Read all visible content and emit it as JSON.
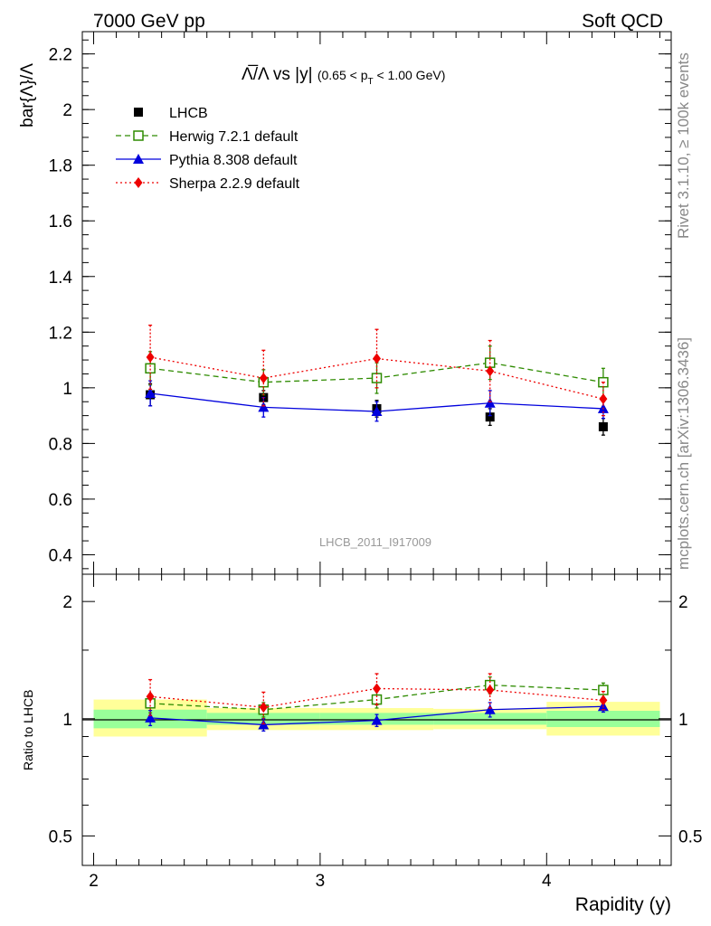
{
  "header": {
    "left": "7000 GeV pp",
    "right": "Soft QCD"
  },
  "side": {
    "rivet": "Rivet 3.1.10, ≥ 100k events",
    "mcplots": "mcplots.cern.ch [arXiv:1306.3436]"
  },
  "chart_data": [
    {
      "type": "scatter",
      "title_main": "Λ̅/Λ vs |y|",
      "title_range_pre": "(0.65 < p",
      "title_range_sub": "T",
      "title_range_post": " < 1.00 GeV)",
      "ylabel": "bar{Λ}/Λ",
      "watermark": "LHCB_2011_I917009",
      "xlim": [
        1.95,
        4.55
      ],
      "ylim": [
        0.33,
        2.28
      ],
      "x_ticks": [
        "2",
        "3",
        "4"
      ],
      "y_ticks": [
        "0.4",
        "0.6",
        "0.8",
        "1",
        "1.2",
        "1.4",
        "1.6",
        "1.8",
        "2",
        "2.2"
      ],
      "x": [
        2.25,
        2.75,
        3.25,
        3.75,
        4.25
      ],
      "series": [
        {
          "name": "LHCB",
          "color": "#000000",
          "marker": "square-filled",
          "line": "none",
          "values": [
            0.975,
            0.965,
            0.925,
            0.895,
            0.86
          ],
          "err": [
            0.04,
            0.025,
            0.03,
            0.03,
            0.03
          ]
        },
        {
          "name": "Herwig 7.2.1 default",
          "color": "#2e8b00",
          "marker": "square-open",
          "line": "dashed",
          "values": [
            1.07,
            1.02,
            1.035,
            1.09,
            1.02
          ],
          "err": [
            0.06,
            0.045,
            0.055,
            0.06,
            0.05
          ]
        },
        {
          "name": "Pythia 8.308 default",
          "color": "#0000dd",
          "marker": "triangle",
          "line": "solid",
          "values": [
            0.98,
            0.93,
            0.915,
            0.945,
            0.925
          ],
          "err": [
            0.045,
            0.035,
            0.035,
            0.045,
            0.035
          ]
        },
        {
          "name": "Sherpa 2.2.9 default",
          "color": "#ee0000",
          "marker": "diamond",
          "line": "dotted",
          "values": [
            1.11,
            1.035,
            1.105,
            1.06,
            0.96
          ],
          "err": [
            0.115,
            0.1,
            0.105,
            0.11,
            0.06
          ]
        }
      ]
    },
    {
      "type": "scatter",
      "ylabel": "Ratio to LHCB",
      "xlabel": "Rapidity (y)",
      "xlim": [
        1.95,
        4.55
      ],
      "ylim": [
        0.42,
        2.35
      ],
      "log_y": true,
      "x_ticks": [
        "2",
        "3",
        "4"
      ],
      "y_ticks": [
        "0.5",
        "1",
        "2"
      ],
      "x": [
        2.25,
        2.75,
        3.25,
        3.75,
        4.25
      ],
      "bands": [
        {
          "x": [
            2.0,
            2.5
          ],
          "yellow": [
            0.9,
            1.12
          ],
          "green": [
            0.945,
            1.055
          ]
        },
        {
          "x": [
            2.5,
            3.0
          ],
          "yellow": [
            0.935,
            1.065
          ],
          "green": [
            0.965,
            1.035
          ]
        },
        {
          "x": [
            3.0,
            3.5
          ],
          "yellow": [
            0.935,
            1.065
          ],
          "green": [
            0.965,
            1.035
          ]
        },
        {
          "x": [
            3.5,
            4.0
          ],
          "yellow": [
            0.94,
            1.06
          ],
          "green": [
            0.965,
            1.035
          ]
        },
        {
          "x": [
            4.0,
            4.5
          ],
          "yellow": [
            0.905,
            1.105
          ],
          "green": [
            0.952,
            1.048
          ]
        }
      ],
      "series": [
        {
          "name": "Herwig 7.2.1 default",
          "color": "#2e8b00",
          "marker": "square-open",
          "line": "dashed",
          "values": [
            1.095,
            1.055,
            1.12,
            1.22,
            1.185
          ],
          "err": [
            0.06,
            0.045,
            0.055,
            0.06,
            0.05
          ]
        },
        {
          "name": "Pythia 8.308 default",
          "color": "#0000dd",
          "marker": "triangle",
          "line": "solid",
          "values": [
            1.005,
            0.965,
            0.99,
            1.055,
            1.075
          ],
          "err": [
            0.045,
            0.035,
            0.035,
            0.045,
            0.035
          ]
        },
        {
          "name": "Sherpa 2.2.9 default",
          "color": "#ee0000",
          "marker": "diamond",
          "line": "dotted",
          "values": [
            1.14,
            1.07,
            1.195,
            1.185,
            1.115
          ],
          "err": [
            0.12,
            0.1,
            0.11,
            0.12,
            0.06
          ]
        }
      ]
    }
  ]
}
